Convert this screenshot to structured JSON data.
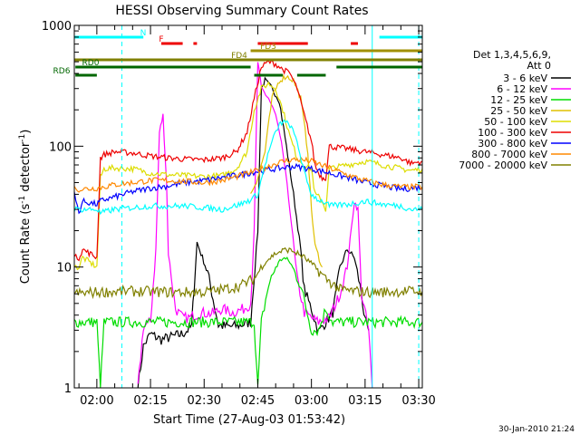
{
  "chart_data": {
    "type": "line",
    "title": "HESSI Observing Summary Count Rates",
    "xlabel": "Start Time (27-Aug-03 01:53:42)",
    "ylabel_parts": [
      "Count Rate (s",
      "-1",
      " detector",
      "-1",
      ")"
    ],
    "yscale": "log",
    "ylim": [
      1,
      1000
    ],
    "xlim": [
      "01:53:42",
      "03:31:00"
    ],
    "x_ticks": [
      "02:00",
      "02:15",
      "02:30",
      "02:45",
      "03:00",
      "03:15",
      "03:30"
    ],
    "y_ticks": [
      "1",
      "10",
      "100",
      "1000"
    ],
    "legend": {
      "placement": "right",
      "header_lines": [
        "Det 1,3,4,5,6,9,",
        "Att 0"
      ],
      "entries": [
        {
          "label": "3 - 6 keV",
          "color": "#000000"
        },
        {
          "label": "6 - 12 keV",
          "color": "#ff00ff"
        },
        {
          "label": "12 - 25 keV",
          "color": "#00dd00"
        },
        {
          "label": "25 - 50 keV",
          "color": "#e0c000"
        },
        {
          "label": "50 - 100 keV",
          "color": "#dddd00"
        },
        {
          "label": "100 - 300 keV",
          "color": "#ee0000"
        },
        {
          "label": "300 - 800 keV",
          "color": "#0000ff"
        },
        {
          "label": "800 - 7000 keV",
          "color": "#ff8800"
        },
        {
          "label": "7000 - 20000 keV",
          "color": "#808000"
        }
      ]
    },
    "flag_bars": [
      {
        "label": "N",
        "color": "#00ffff",
        "segments": [
          [
            "01:53:42",
            "02:13:00"
          ],
          [
            "03:19:00",
            "03:31:00"
          ]
        ]
      },
      {
        "label": "F",
        "color": "#ee0000",
        "segments": [
          [
            "02:18:00",
            "02:24:00"
          ],
          [
            "02:27:00",
            "02:28:00"
          ],
          [
            "02:45:00",
            "02:59:00"
          ],
          [
            "03:11:00",
            "03:13:00"
          ]
        ]
      },
      {
        "label": "FD3",
        "color": "#a09000",
        "segments": [
          [
            "02:43:00",
            "03:31:00"
          ]
        ]
      },
      {
        "label": "FD4",
        "color": "#808000",
        "segments": [
          [
            "01:53:42",
            "03:31:00"
          ]
        ]
      },
      {
        "label": "RD0",
        "color": "#006600",
        "segments": [
          [
            "01:54:00",
            "02:43:00"
          ],
          [
            "03:07:00",
            "03:31:00"
          ]
        ]
      },
      {
        "label": "RD6",
        "color": "#006600",
        "segments": [
          [
            "01:54:00",
            "02:00:00"
          ],
          [
            "02:44:00",
            "02:52:00"
          ],
          [
            "02:56:00",
            "03:04:00"
          ]
        ]
      }
    ],
    "vertical_lines": [
      {
        "x": "02:07:00",
        "color": "#00ffff",
        "style": "dashed"
      },
      {
        "x": "03:17:00",
        "color": "#00ffff",
        "style": "solid"
      },
      {
        "x": "03:30:00",
        "color": "#00ffff",
        "style": "dashed"
      }
    ],
    "series": [
      {
        "name": "3 - 6 keV",
        "color": "#000000",
        "x": [
          "02:11:30",
          "02:13",
          "02:15",
          "02:18",
          "02:20",
          "02:24",
          "02:26:30",
          "02:28",
          "02:31",
          "02:34",
          "02:37",
          "02:40",
          "02:43",
          "02:45",
          "02:46",
          "02:47",
          "02:49",
          "02:51",
          "02:53",
          "02:55",
          "02:57",
          "02:58",
          "03:00",
          "03:02",
          "03:04",
          "03:06",
          "03:08",
          "03:10",
          "03:12",
          "03:14",
          "03:15",
          "03:16"
        ],
        "y": [
          1,
          2.2,
          2.8,
          2.5,
          2.6,
          2.8,
          3.2,
          16,
          9,
          3.3,
          3.2,
          3.3,
          3.5,
          20,
          300,
          350,
          300,
          240,
          100,
          40,
          14,
          6.5,
          4.5,
          2.9,
          3.5,
          4.2,
          10,
          14,
          12,
          6,
          3.5,
          3
        ]
      },
      {
        "name": "6 - 12 keV",
        "color": "#ff00ff",
        "x": [
          "02:11:30",
          "02:13",
          "02:15",
          "02:16:30",
          "02:17:30",
          "02:18:30",
          "02:19:30",
          "02:20",
          "02:22",
          "02:24",
          "02:26",
          "02:29",
          "02:32",
          "02:35",
          "02:38",
          "02:41",
          "02:43",
          "02:44",
          "02:45",
          "02:46",
          "02:48",
          "02:50",
          "02:52",
          "02:54",
          "02:56",
          "02:58",
          "03:00",
          "03:02",
          "03:05",
          "03:08",
          "03:10",
          "03:12",
          "03:13",
          "03:14",
          "03:16",
          "03:17"
        ],
        "y": [
          1,
          3.2,
          3.5,
          14,
          130,
          180,
          50,
          13,
          4.5,
          3.8,
          3.8,
          4.2,
          4.1,
          4.5,
          4.2,
          4.5,
          5,
          20,
          500,
          300,
          250,
          180,
          90,
          30,
          8,
          4.2,
          3.8,
          3.5,
          3.8,
          6,
          10,
          35,
          30,
          6,
          3,
          1
        ]
      },
      {
        "name": "12 - 25 keV",
        "color": "#00dd00",
        "x": [
          "01:53:42",
          "02:00",
          "02:01",
          "02:02",
          "02:10",
          "02:20",
          "02:30",
          "02:40",
          "02:44",
          "02:45",
          "02:46",
          "02:48",
          "02:50",
          "02:52",
          "02:54",
          "02:57",
          "03:00",
          "03:02",
          "03:04",
          "03:06",
          "03:10",
          "03:16",
          "03:20",
          "03:25",
          "03:31"
        ],
        "y": [
          3.5,
          3.5,
          1,
          3.5,
          3.5,
          3.5,
          3.5,
          3.5,
          3.5,
          1,
          3.5,
          7,
          10,
          12,
          11,
          7,
          3,
          3,
          4.5,
          3.5,
          3.5,
          3.5,
          3.5,
          3.5,
          3.5
        ]
      },
      {
        "name": "25 - 50 keV",
        "color": "#e0c000",
        "x": [
          "02:43",
          "02:45",
          "02:47",
          "02:49",
          "02:51",
          "02:53",
          "02:55",
          "02:57",
          "02:59",
          "03:00",
          "03:01",
          "03:03"
        ],
        "y": [
          40,
          55,
          90,
          250,
          350,
          380,
          350,
          250,
          90,
          30,
          15,
          10
        ]
      },
      {
        "name": "50 - 100 keV",
        "color": "#dddd00",
        "x": [
          "01:53:42",
          "01:55",
          "01:56",
          "02:00",
          "02:01",
          "02:02",
          "02:05",
          "02:10",
          "02:15",
          "02:20",
          "02:25",
          "02:30",
          "02:35",
          "02:39",
          "02:42",
          "02:44",
          "02:46",
          "02:48",
          "02:50",
          "02:52",
          "02:54",
          "02:56",
          "02:58",
          "03:00",
          "03:01",
          "03:02",
          "03:03",
          "03:04",
          "03:05",
          "03:10",
          "03:15",
          "03:20",
          "03:25",
          "03:28",
          "03:31"
        ],
        "y": [
          10,
          10,
          12,
          10,
          55,
          65,
          66,
          65,
          60,
          58,
          57,
          56,
          57,
          65,
          90,
          200,
          300,
          330,
          300,
          200,
          120,
          80,
          70,
          65,
          40,
          38,
          35,
          30,
          65,
          70,
          75,
          70,
          65,
          63,
          65
        ]
      },
      {
        "name": "100 - 300 keV",
        "color": "#ee0000",
        "x": [
          "01:53:42",
          "01:55",
          "01:56",
          "02:00",
          "02:01",
          "02:02",
          "02:05",
          "02:10",
          "02:15",
          "02:20",
          "02:25",
          "02:30",
          "02:35",
          "02:39",
          "02:42",
          "02:44",
          "02:46",
          "02:48",
          "02:50",
          "02:52",
          "02:54",
          "02:56",
          "02:58",
          "03:00",
          "03:01",
          "03:02",
          "03:03",
          "03:04",
          "03:05",
          "03:10",
          "03:15",
          "03:20",
          "03:25",
          "03:28",
          "03:31"
        ],
        "y": [
          12,
          12,
          14,
          12,
          80,
          85,
          90,
          88,
          83,
          80,
          78,
          77,
          80,
          90,
          130,
          250,
          450,
          500,
          480,
          430,
          400,
          300,
          180,
          110,
          70,
          60,
          55,
          55,
          100,
          95,
          90,
          85,
          80,
          72,
          75
        ]
      },
      {
        "name": "300 - 800 keV",
        "color": "#0000ff",
        "x": [
          "01:53:42",
          "01:55",
          "01:56",
          "02:00",
          "02:01",
          "02:02",
          "02:05",
          "02:10",
          "02:15",
          "02:20",
          "02:25",
          "02:30",
          "02:35",
          "02:40",
          "02:45",
          "02:50",
          "02:55",
          "03:00",
          "03:05",
          "03:10",
          "03:15",
          "03:20",
          "03:25",
          "03:31"
        ],
        "y": [
          40,
          28,
          35,
          33,
          35,
          36,
          38,
          42,
          45,
          47,
          50,
          52,
          55,
          58,
          62,
          65,
          68,
          65,
          60,
          55,
          50,
          47,
          44,
          46
        ]
      },
      {
        "name": "800 - 7000 keV",
        "color": "#ff8800",
        "x": [
          "01:53:42",
          "01:55",
          "02:00",
          "02:05",
          "02:10",
          "02:15",
          "02:20",
          "02:25",
          "02:30",
          "02:35",
          "02:40",
          "02:45",
          "02:50",
          "02:53",
          "02:56",
          "03:00",
          "03:05",
          "03:10",
          "03:15",
          "03:20",
          "03:25",
          "03:31"
        ],
        "y": [
          45,
          44,
          45,
          48,
          50,
          52,
          52,
          51,
          50,
          52,
          57,
          63,
          72,
          76,
          78,
          75,
          66,
          58,
          52,
          48,
          46,
          46
        ]
      },
      {
        "name": "7000 - 20000 keV",
        "color": "#808000",
        "x": [
          "01:53:42",
          "02:00",
          "02:10",
          "02:20",
          "02:30",
          "02:35",
          "02:40",
          "02:44",
          "02:47",
          "02:50",
          "02:53",
          "02:55",
          "02:58",
          "03:01",
          "03:04",
          "03:08",
          "03:12",
          "03:16",
          "03:20",
          "03:25",
          "03:31"
        ],
        "y": [
          6,
          6.2,
          6.3,
          6.2,
          6.2,
          6.5,
          7,
          8,
          11,
          13,
          14,
          13.5,
          12,
          10,
          8,
          6.5,
          6.3,
          6.2,
          6.2,
          6.3,
          6.3
        ]
      },
      {
        "name": "Cyan",
        "color": "#00ffff",
        "x": [
          "01:53:42",
          "01:55",
          "02:00",
          "02:01",
          "02:05",
          "02:10",
          "02:15",
          "02:20",
          "02:25",
          "02:30",
          "02:35",
          "02:40",
          "02:43",
          "02:45",
          "02:47",
          "02:49",
          "02:51",
          "02:52",
          "02:54",
          "02:56",
          "02:58",
          "03:00",
          "03:02",
          "03:04",
          "03:05",
          "03:10",
          "03:15",
          "03:20",
          "03:25",
          "03:28",
          "03:31"
        ],
        "y": [
          30,
          30,
          30,
          28,
          30,
          31,
          32,
          32,
          32,
          31,
          30,
          33,
          36,
          40,
          70,
          110,
          150,
          160,
          150,
          110,
          60,
          40,
          36,
          34,
          32,
          33,
          35,
          33,
          32,
          30,
          30
        ]
      }
    ]
  },
  "footer": {
    "date_stamp": "30-Jan-2010 21:24"
  }
}
